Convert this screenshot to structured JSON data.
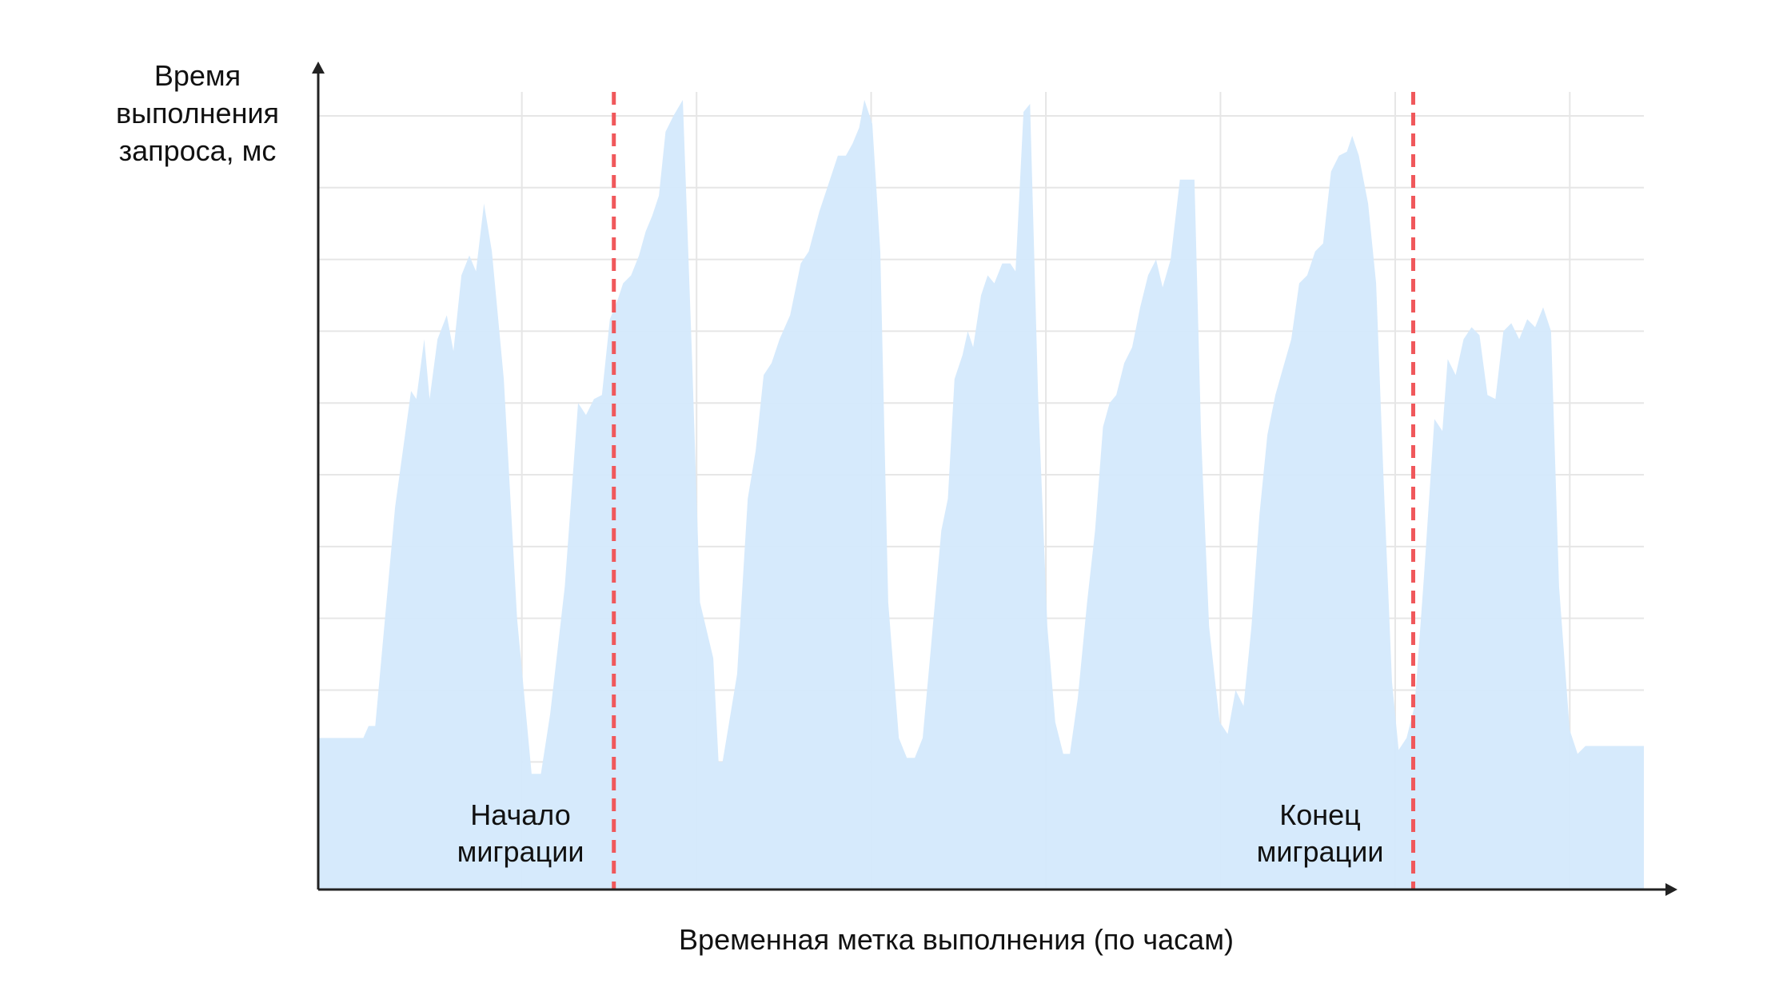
{
  "chart_data": {
    "type": "area",
    "title": "",
    "ylabel_lines": [
      "Время",
      "выполнения",
      "запроса, мс"
    ],
    "xlabel": "Временная метка выполнения (по часам)",
    "grid": true,
    "xlim": [
      0,
      1.0
    ],
    "ylim": [
      0,
      1.0
    ],
    "colors": {
      "area": "#d4e9fc",
      "grid": "#e6e6e6",
      "axis": "#222222",
      "marker": "#f0585b"
    },
    "series": [
      {
        "values": [
          [
            0.0,
            0.19
          ],
          [
            0.034,
            0.19
          ],
          [
            0.038,
            0.205
          ],
          [
            0.043,
            0.205
          ],
          [
            0.058,
            0.48
          ],
          [
            0.07,
            0.625
          ],
          [
            0.074,
            0.615
          ],
          [
            0.08,
            0.69
          ],
          [
            0.084,
            0.615
          ],
          [
            0.09,
            0.69
          ],
          [
            0.097,
            0.72
          ],
          [
            0.102,
            0.675
          ],
          [
            0.108,
            0.77
          ],
          [
            0.114,
            0.795
          ],
          [
            0.119,
            0.775
          ],
          [
            0.125,
            0.86
          ],
          [
            0.131,
            0.8
          ],
          [
            0.14,
            0.64
          ],
          [
            0.15,
            0.34
          ],
          [
            0.161,
            0.145
          ],
          [
            0.168,
            0.145
          ],
          [
            0.175,
            0.22
          ],
          [
            0.186,
            0.38
          ],
          [
            0.196,
            0.61
          ],
          [
            0.202,
            0.595
          ],
          [
            0.208,
            0.615
          ],
          [
            0.214,
            0.62
          ],
          [
            0.22,
            0.715
          ],
          [
            0.226,
            0.74
          ],
          [
            0.23,
            0.76
          ],
          [
            0.236,
            0.77
          ],
          [
            0.242,
            0.795
          ],
          [
            0.247,
            0.825
          ],
          [
            0.252,
            0.845
          ],
          [
            0.257,
            0.87
          ],
          [
            0.262,
            0.95
          ],
          [
            0.268,
            0.97
          ],
          [
            0.275,
            0.99
          ],
          [
            0.282,
            0.665
          ],
          [
            0.288,
            0.36
          ],
          [
            0.298,
            0.29
          ],
          [
            0.302,
            0.16
          ],
          [
            0.305,
            0.16
          ],
          [
            0.31,
            0.21
          ],
          [
            0.316,
            0.27
          ],
          [
            0.324,
            0.49
          ],
          [
            0.33,
            0.55
          ],
          [
            0.336,
            0.645
          ],
          [
            0.342,
            0.66
          ],
          [
            0.348,
            0.69
          ],
          [
            0.356,
            0.72
          ],
          [
            0.364,
            0.785
          ],
          [
            0.37,
            0.8
          ],
          [
            0.378,
            0.85
          ],
          [
            0.384,
            0.88
          ],
          [
            0.392,
            0.92
          ],
          [
            0.398,
            0.92
          ],
          [
            0.403,
            0.935
          ],
          [
            0.408,
            0.955
          ],
          [
            0.412,
            0.99
          ],
          [
            0.418,
            0.96
          ],
          [
            0.424,
            0.8
          ],
          [
            0.43,
            0.36
          ],
          [
            0.438,
            0.19
          ],
          [
            0.444,
            0.165
          ],
          [
            0.45,
            0.165
          ],
          [
            0.456,
            0.19
          ],
          [
            0.462,
            0.3
          ],
          [
            0.47,
            0.45
          ],
          [
            0.475,
            0.49
          ],
          [
            0.48,
            0.64
          ],
          [
            0.486,
            0.67
          ],
          [
            0.49,
            0.7
          ],
          [
            0.494,
            0.68
          ],
          [
            0.5,
            0.745
          ],
          [
            0.505,
            0.77
          ],
          [
            0.51,
            0.76
          ],
          [
            0.516,
            0.785
          ],
          [
            0.522,
            0.785
          ],
          [
            0.526,
            0.775
          ],
          [
            0.532,
            0.975
          ],
          [
            0.537,
            0.985
          ],
          [
            0.543,
            0.62
          ],
          [
            0.55,
            0.33
          ],
          [
            0.556,
            0.21
          ],
          [
            0.562,
            0.17
          ],
          [
            0.567,
            0.17
          ],
          [
            0.573,
            0.24
          ],
          [
            0.58,
            0.36
          ],
          [
            0.586,
            0.45
          ],
          [
            0.592,
            0.58
          ],
          [
            0.597,
            0.61
          ],
          [
            0.602,
            0.62
          ],
          [
            0.608,
            0.66
          ],
          [
            0.614,
            0.68
          ],
          [
            0.62,
            0.73
          ],
          [
            0.626,
            0.77
          ],
          [
            0.632,
            0.79
          ],
          [
            0.637,
            0.755
          ],
          [
            0.643,
            0.79
          ],
          [
            0.65,
            0.89
          ],
          [
            0.656,
            0.89
          ],
          [
            0.661,
            0.89
          ],
          [
            0.666,
            0.57
          ],
          [
            0.672,
            0.33
          ],
          [
            0.68,
            0.21
          ],
          [
            0.686,
            0.195
          ],
          [
            0.692,
            0.25
          ],
          [
            0.698,
            0.23
          ],
          [
            0.704,
            0.33
          ],
          [
            0.71,
            0.47
          ],
          [
            0.716,
            0.57
          ],
          [
            0.722,
            0.62
          ],
          [
            0.728,
            0.655
          ],
          [
            0.734,
            0.69
          ],
          [
            0.74,
            0.76
          ],
          [
            0.746,
            0.77
          ],
          [
            0.752,
            0.8
          ],
          [
            0.758,
            0.81
          ],
          [
            0.764,
            0.9
          ],
          [
            0.77,
            0.92
          ],
          [
            0.776,
            0.925
          ],
          [
            0.78,
            0.945
          ],
          [
            0.785,
            0.92
          ],
          [
            0.792,
            0.86
          ],
          [
            0.798,
            0.76
          ],
          [
            0.804,
            0.5
          ],
          [
            0.81,
            0.26
          ],
          [
            0.815,
            0.175
          ],
          [
            0.821,
            0.19
          ],
          [
            0.827,
            0.23
          ],
          [
            0.834,
            0.39
          ],
          [
            0.842,
            0.59
          ],
          [
            0.848,
            0.575
          ],
          [
            0.852,
            0.665
          ],
          [
            0.858,
            0.645
          ],
          [
            0.864,
            0.69
          ],
          [
            0.87,
            0.705
          ],
          [
            0.876,
            0.695
          ],
          [
            0.882,
            0.62
          ],
          [
            0.888,
            0.615
          ],
          [
            0.894,
            0.7
          ],
          [
            0.9,
            0.71
          ],
          [
            0.906,
            0.69
          ],
          [
            0.912,
            0.715
          ],
          [
            0.918,
            0.705
          ],
          [
            0.924,
            0.73
          ],
          [
            0.93,
            0.7
          ],
          [
            0.936,
            0.38
          ],
          [
            0.944,
            0.2
          ],
          [
            0.95,
            0.17
          ],
          [
            0.956,
            0.18
          ],
          [
            0.962,
            0.18
          ],
          [
            0.97,
            0.18
          ],
          [
            1.0,
            0.18
          ]
        ]
      }
    ],
    "markers": [
      {
        "x": 0.223,
        "label_lines": [
          "Начало",
          "миграции"
        ]
      },
      {
        "x": 0.826,
        "label_lines": [
          "Конец",
          "миграции"
        ]
      }
    ]
  }
}
